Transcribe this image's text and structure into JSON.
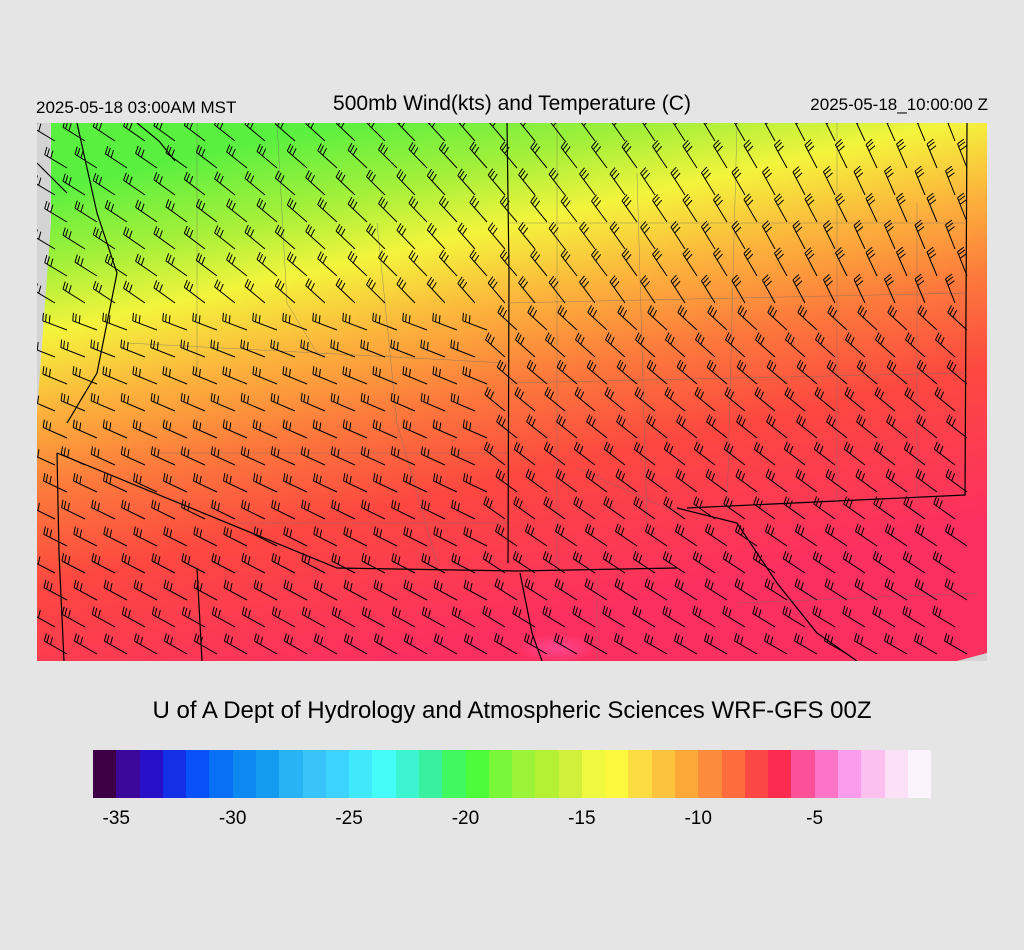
{
  "header": {
    "valid_local": "2025-05-18 03:00AM MST",
    "title": "500mb Wind(kts) and Temperature (C)",
    "valid_utc": "2025-05-18_10:00:00 Z"
  },
  "credit": "U of A Dept of Hydrology and Atmospheric Sciences WRF-GFS 00Z",
  "colorbar": {
    "colors": [
      "#3d0044",
      "#3c089a",
      "#2810c8",
      "#1430e6",
      "#0850f8",
      "#0870f4",
      "#0c88f0",
      "#149cf0",
      "#28b4f4",
      "#38c4f8",
      "#3cd4fc",
      "#40e8fc",
      "#44fcf8",
      "#3cf4d0",
      "#38f0a0",
      "#40f860",
      "#4cfc38",
      "#78f838",
      "#9cf438",
      "#b4f034",
      "#d0f03c",
      "#f0f840",
      "#fcf83c",
      "#fcdc40",
      "#fcc43c",
      "#fca838",
      "#fc8c3c",
      "#fc6c3c",
      "#fc4844",
      "#fc2c50",
      "#fc5098",
      "#fc74c8",
      "#fc9cec",
      "#fcc0f0",
      "#fce0f8",
      "#fcf4fc"
    ],
    "ticks": [
      "-35",
      "-30",
      "-25",
      "-20",
      "-15",
      "-10",
      "-5"
    ]
  },
  "map": {
    "field": "500mb temperature (C) shaded with wind barbs (kts)",
    "gradient_colors": [
      "#5af040",
      "#a4f03a",
      "#f4f43c",
      "#fcb43c",
      "#fc7a3c",
      "#fc4840",
      "#fc3060"
    ]
  }
}
